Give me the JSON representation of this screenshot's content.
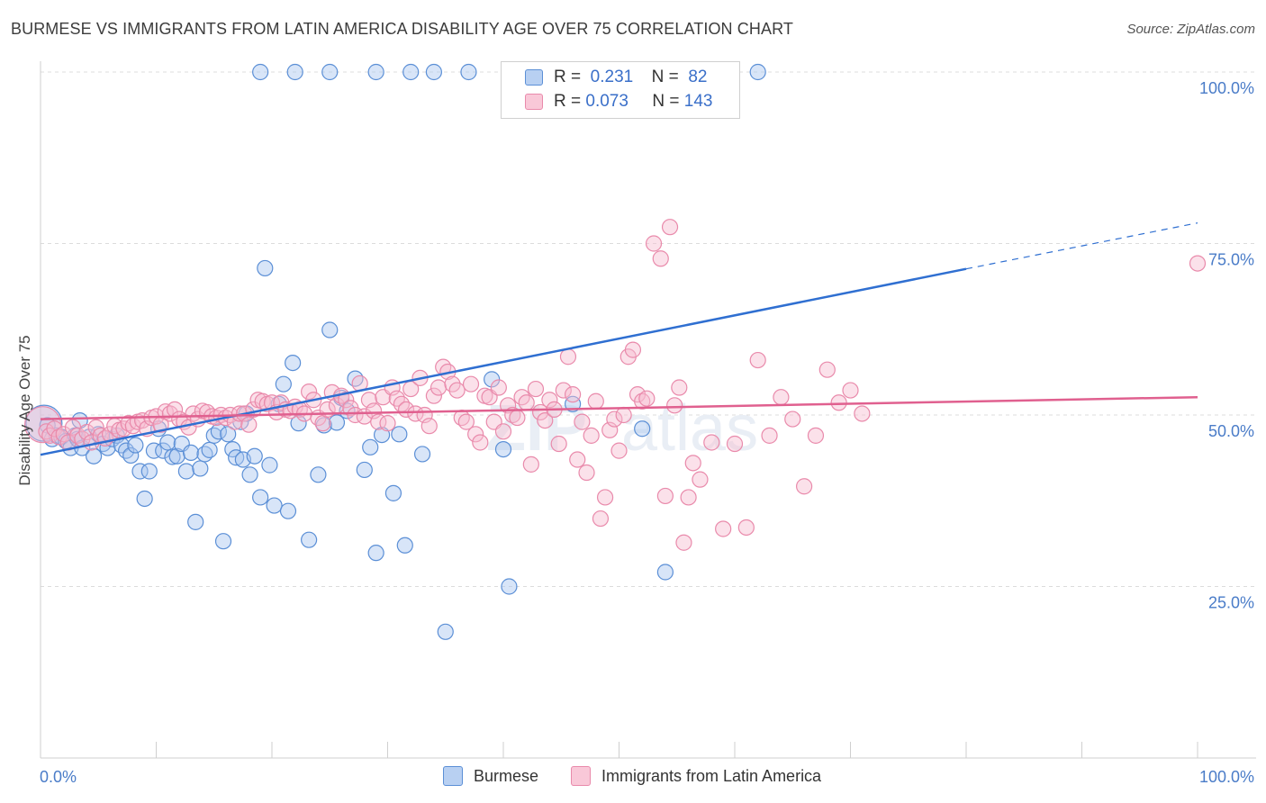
{
  "header": {
    "title": "BURMESE VS IMMIGRANTS FROM LATIN AMERICA DISABILITY AGE OVER 75 CORRELATION CHART",
    "source": "Source: ZipAtlas.com"
  },
  "colors": {
    "blue": "#5b8fd6",
    "blue_fill": "#a9c6ef",
    "blue_line": "#2f6fd1",
    "pink": "#e98aab",
    "pink_fill": "#f6bcd0",
    "pink_line": "#e0608f",
    "tick": "#4a7cc8"
  },
  "legend": {
    "r_label": "R =",
    "n_label": "N =",
    "series": [
      {
        "r": "0.231",
        "n": "82"
      },
      {
        "r": "0.073",
        "n": "143"
      }
    ]
  },
  "chart_data": {
    "type": "scatter",
    "title": "BURMESE VS IMMIGRANTS FROM LATIN AMERICA DISABILITY AGE OVER 75 CORRELATION CHART",
    "ylabel": "Disability Age Over 75",
    "xlabel": "",
    "xlim": [
      0,
      100
    ],
    "ylim": [
      0,
      100
    ],
    "x_tick_labels": [
      "0.0%",
      "100.0%"
    ],
    "y_tick_labels": [
      "100.0%",
      "75.0%",
      "50.0%",
      "25.0%"
    ],
    "y_ticks": [
      100,
      75,
      50,
      25
    ],
    "grid": true,
    "legend_position": "top-center",
    "watermark": "ZIPatlas",
    "series": [
      {
        "name": "Burmese",
        "r": 0.231,
        "n": 82,
        "trend": {
          "x0": 0,
          "y0": 44.2,
          "x1": 80,
          "y1": 71.3,
          "dash_to_x": 100,
          "dash_to_y": 78
        },
        "points": [
          [
            0.3,
            48.8
          ],
          [
            0.6,
            48.5
          ],
          [
            1.0,
            46.5
          ],
          [
            1.4,
            47.0
          ],
          [
            1.8,
            46.8
          ],
          [
            2.2,
            46.2
          ],
          [
            2.6,
            45.2
          ],
          [
            3.0,
            47.0
          ],
          [
            3.2,
            46.5
          ],
          [
            3.4,
            49.2
          ],
          [
            3.6,
            45.2
          ],
          [
            4.2,
            46.8
          ],
          [
            4.6,
            44.0
          ],
          [
            5.0,
            47.2
          ],
          [
            5.4,
            45.8
          ],
          [
            5.8,
            45.2
          ],
          [
            6.2,
            46.5
          ],
          [
            6.6,
            47.0
          ],
          [
            7.0,
            45.6
          ],
          [
            7.4,
            44.8
          ],
          [
            7.8,
            44.1
          ],
          [
            8.2,
            45.6
          ],
          [
            8.6,
            41.8
          ],
          [
            9.0,
            37.8
          ],
          [
            9.4,
            41.8
          ],
          [
            9.8,
            44.8
          ],
          [
            10.2,
            48.0
          ],
          [
            10.6,
            44.8
          ],
          [
            11.0,
            46.0
          ],
          [
            11.4,
            43.9
          ],
          [
            11.8,
            44.0
          ],
          [
            12.2,
            45.8
          ],
          [
            12.6,
            41.8
          ],
          [
            13.0,
            44.5
          ],
          [
            13.4,
            34.4
          ],
          [
            13.8,
            42.2
          ],
          [
            14.2,
            44.3
          ],
          [
            14.6,
            44.9
          ],
          [
            15.0,
            47.0
          ],
          [
            15.4,
            47.6
          ],
          [
            15.8,
            31.6
          ],
          [
            16.2,
            47.2
          ],
          [
            16.6,
            45.0
          ],
          [
            16.9,
            43.8
          ],
          [
            17.3,
            49.0
          ],
          [
            17.5,
            43.5
          ],
          [
            17.8,
            50.2
          ],
          [
            18.1,
            41.3
          ],
          [
            18.5,
            44.0
          ],
          [
            19.0,
            38.0
          ],
          [
            19.4,
            71.4
          ],
          [
            19.8,
            42.7
          ],
          [
            20.2,
            36.8
          ],
          [
            20.6,
            51.6
          ],
          [
            21.0,
            54.5
          ],
          [
            21.4,
            36.0
          ],
          [
            21.8,
            57.6
          ],
          [
            22.3,
            48.8
          ],
          [
            23.2,
            31.8
          ],
          [
            24.0,
            41.3
          ],
          [
            24.5,
            48.5
          ],
          [
            25.0,
            62.4
          ],
          [
            25.6,
            48.9
          ],
          [
            26.0,
            52.5
          ],
          [
            26.5,
            50.6
          ],
          [
            27.2,
            55.3
          ],
          [
            28.0,
            42.0
          ],
          [
            28.5,
            45.3
          ],
          [
            29.0,
            29.9
          ],
          [
            29.5,
            47.1
          ],
          [
            30.5,
            38.6
          ],
          [
            31.0,
            47.2
          ],
          [
            31.5,
            31.0
          ],
          [
            33.0,
            44.3
          ],
          [
            35.0,
            18.4
          ],
          [
            39.0,
            55.2
          ],
          [
            40.0,
            45.0
          ],
          [
            40.5,
            25.0
          ],
          [
            46.0,
            51.6
          ],
          [
            52.0,
            48.0
          ],
          [
            54.0,
            27.1
          ],
          [
            19.0,
            100
          ],
          [
            22.0,
            100
          ],
          [
            25.0,
            100
          ],
          [
            29.0,
            100
          ],
          [
            32.0,
            100
          ],
          [
            34.0,
            100
          ],
          [
            37.0,
            100
          ],
          [
            62.0,
            100
          ]
        ]
      },
      {
        "name": "Immigrants from Latin America",
        "r": 0.073,
        "n": 143,
        "trend": {
          "x0": 0,
          "y0": 49.4,
          "x1": 100,
          "y1": 52.6
        },
        "points": [
          [
            0.2,
            48.6
          ],
          [
            0.5,
            47.6
          ],
          [
            0.8,
            47.0
          ],
          [
            1.2,
            48.0
          ],
          [
            1.6,
            46.8
          ],
          [
            2.0,
            47.2
          ],
          [
            2.4,
            46.0
          ],
          [
            2.8,
            48.2
          ],
          [
            3.2,
            47.0
          ],
          [
            3.6,
            46.5
          ],
          [
            4.0,
            47.5
          ],
          [
            4.4,
            46.0
          ],
          [
            4.8,
            48.2
          ],
          [
            5.2,
            47.0
          ],
          [
            5.6,
            46.6
          ],
          [
            6.0,
            47.2
          ],
          [
            6.4,
            48.4
          ],
          [
            6.8,
            47.8
          ],
          [
            7.2,
            48.0
          ],
          [
            7.6,
            48.8
          ],
          [
            8.0,
            48.4
          ],
          [
            8.4,
            49.0
          ],
          [
            8.8,
            49.2
          ],
          [
            9.2,
            48.0
          ],
          [
            9.6,
            49.6
          ],
          [
            10.0,
            49.8
          ],
          [
            10.4,
            48.6
          ],
          [
            10.8,
            50.5
          ],
          [
            11.2,
            50.2
          ],
          [
            11.6,
            50.8
          ],
          [
            12.0,
            49.4
          ],
          [
            12.4,
            49.0
          ],
          [
            12.8,
            48.2
          ],
          [
            13.2,
            50.2
          ],
          [
            13.6,
            49.4
          ],
          [
            14.0,
            50.6
          ],
          [
            14.4,
            50.4
          ],
          [
            14.8,
            49.8
          ],
          [
            15.2,
            49.6
          ],
          [
            15.6,
            50.0
          ],
          [
            16.0,
            49.6
          ],
          [
            16.4,
            50.0
          ],
          [
            16.8,
            49.0
          ],
          [
            17.2,
            50.2
          ],
          [
            17.6,
            50.2
          ],
          [
            18.0,
            48.6
          ],
          [
            18.4,
            50.8
          ],
          [
            18.8,
            52.2
          ],
          [
            19.2,
            52.0
          ],
          [
            19.6,
            51.6
          ],
          [
            20.0,
            51.8
          ],
          [
            20.4,
            50.4
          ],
          [
            20.8,
            51.8
          ],
          [
            21.2,
            50.8
          ],
          [
            21.6,
            50.6
          ],
          [
            22.0,
            51.2
          ],
          [
            22.4,
            50.8
          ],
          [
            22.8,
            50.2
          ],
          [
            23.2,
            53.4
          ],
          [
            23.6,
            52.2
          ],
          [
            24.0,
            49.6
          ],
          [
            24.4,
            48.8
          ],
          [
            24.8,
            50.8
          ],
          [
            25.2,
            53.3
          ],
          [
            25.6,
            51.4
          ],
          [
            26.0,
            52.8
          ],
          [
            26.4,
            52.2
          ],
          [
            26.8,
            51.0
          ],
          [
            27.2,
            50.0
          ],
          [
            27.6,
            54.6
          ],
          [
            28.0,
            49.8
          ],
          [
            28.4,
            52.2
          ],
          [
            28.8,
            50.6
          ],
          [
            29.2,
            49.0
          ],
          [
            29.6,
            52.6
          ],
          [
            30.0,
            48.8
          ],
          [
            30.4,
            54.0
          ],
          [
            30.8,
            52.4
          ],
          [
            31.2,
            51.6
          ],
          [
            31.6,
            50.8
          ],
          [
            32.0,
            53.8
          ],
          [
            32.4,
            50.2
          ],
          [
            32.8,
            55.4
          ],
          [
            33.2,
            50.0
          ],
          [
            33.6,
            48.4
          ],
          [
            34.0,
            52.8
          ],
          [
            34.4,
            54.0
          ],
          [
            34.8,
            57.0
          ],
          [
            35.2,
            56.3
          ],
          [
            35.6,
            54.5
          ],
          [
            36.0,
            53.6
          ],
          [
            36.4,
            49.6
          ],
          [
            36.8,
            49.0
          ],
          [
            37.2,
            54.5
          ],
          [
            37.6,
            47.2
          ],
          [
            38.0,
            46.0
          ],
          [
            38.4,
            52.8
          ],
          [
            38.8,
            52.6
          ],
          [
            39.2,
            49.0
          ],
          [
            39.6,
            54.0
          ],
          [
            40.0,
            47.6
          ],
          [
            40.4,
            51.4
          ],
          [
            40.8,
            50.0
          ],
          [
            41.2,
            49.6
          ],
          [
            41.6,
            52.6
          ],
          [
            42.0,
            51.8
          ],
          [
            42.4,
            42.8
          ],
          [
            42.8,
            53.8
          ],
          [
            43.2,
            50.4
          ],
          [
            43.6,
            49.2
          ],
          [
            44.0,
            52.2
          ],
          [
            44.4,
            50.8
          ],
          [
            44.8,
            45.8
          ],
          [
            45.2,
            53.6
          ],
          [
            45.6,
            58.5
          ],
          [
            46.0,
            53.0
          ],
          [
            46.4,
            43.5
          ],
          [
            46.8,
            49.0
          ],
          [
            47.2,
            41.6
          ],
          [
            47.6,
            47.0
          ],
          [
            48.0,
            52.0
          ],
          [
            48.4,
            34.9
          ],
          [
            48.8,
            38.0
          ],
          [
            49.2,
            47.8
          ],
          [
            49.6,
            49.4
          ],
          [
            50.0,
            44.8
          ],
          [
            50.4,
            50.0
          ],
          [
            50.8,
            58.5
          ],
          [
            51.2,
            59.5
          ],
          [
            51.6,
            53.0
          ],
          [
            52.0,
            52.0
          ],
          [
            52.4,
            52.4
          ],
          [
            53.0,
            75.0
          ],
          [
            53.6,
            72.8
          ],
          [
            54.0,
            38.2
          ],
          [
            54.4,
            77.4
          ],
          [
            54.8,
            51.4
          ],
          [
            55.2,
            54.0
          ],
          [
            55.6,
            31.4
          ],
          [
            56.0,
            38.0
          ],
          [
            56.4,
            43.0
          ],
          [
            57.0,
            40.6
          ],
          [
            58.0,
            46.0
          ],
          [
            59.0,
            33.4
          ],
          [
            60.0,
            45.8
          ],
          [
            61.0,
            33.6
          ],
          [
            62.0,
            58.0
          ],
          [
            63.0,
            47.0
          ],
          [
            64.0,
            52.6
          ],
          [
            65.0,
            49.4
          ],
          [
            66.0,
            39.6
          ],
          [
            67.0,
            47.0
          ],
          [
            68.0,
            56.6
          ],
          [
            69.0,
            51.8
          ],
          [
            70.0,
            53.6
          ],
          [
            71.0,
            50.2
          ],
          [
            100.0,
            72.1
          ]
        ]
      }
    ]
  },
  "axis_labels": {
    "x_left": "0.0%",
    "x_right": "100.0%",
    "y_title": "Disability Age Over 75"
  }
}
